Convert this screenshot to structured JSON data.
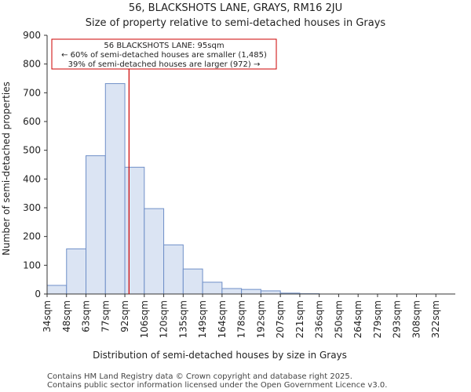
{
  "chart_data": {
    "type": "bar",
    "title": "56, BLACKSHOTS LANE, GRAYS, RM16 2JU",
    "subtitle": "Size of property relative to semi-detached houses in Grays",
    "xlabel": "Distribution of semi-detached houses by size in Grays",
    "ylabel": "Number of semi-detached properties",
    "ylim": [
      0,
      900
    ],
    "yticks": [
      0,
      100,
      200,
      300,
      400,
      500,
      600,
      700,
      800,
      900
    ],
    "categories": [
      "34sqm",
      "48sqm",
      "63sqm",
      "77sqm",
      "92sqm",
      "106sqm",
      "120sqm",
      "135sqm",
      "149sqm",
      "164sqm",
      "178sqm",
      "192sqm",
      "207sqm",
      "221sqm",
      "236sqm",
      "250sqm",
      "264sqm",
      "279sqm",
      "293sqm",
      "308sqm",
      "322sqm"
    ],
    "values": [
      30,
      157,
      481,
      732,
      441,
      297,
      171,
      87,
      41,
      19,
      16,
      11,
      3,
      1,
      0,
      0,
      0,
      0,
      0,
      0,
      0
    ],
    "marker": {
      "value_sqm": 95,
      "line_color": "#cc0000",
      "label_lines": [
        "56 BLACKSHOTS LANE: 95sqm",
        "← 60% of semi-detached houses are smaller (1,485)",
        "39% of semi-detached houses are larger (972) →"
      ]
    },
    "bar_fill": "#dbe4f3",
    "bar_stroke": "#6f8fc8"
  },
  "footer": [
    "Contains HM Land Registry data © Crown copyright and database right 2025.",
    "Contains public sector information licensed under the Open Government Licence v3.0."
  ]
}
